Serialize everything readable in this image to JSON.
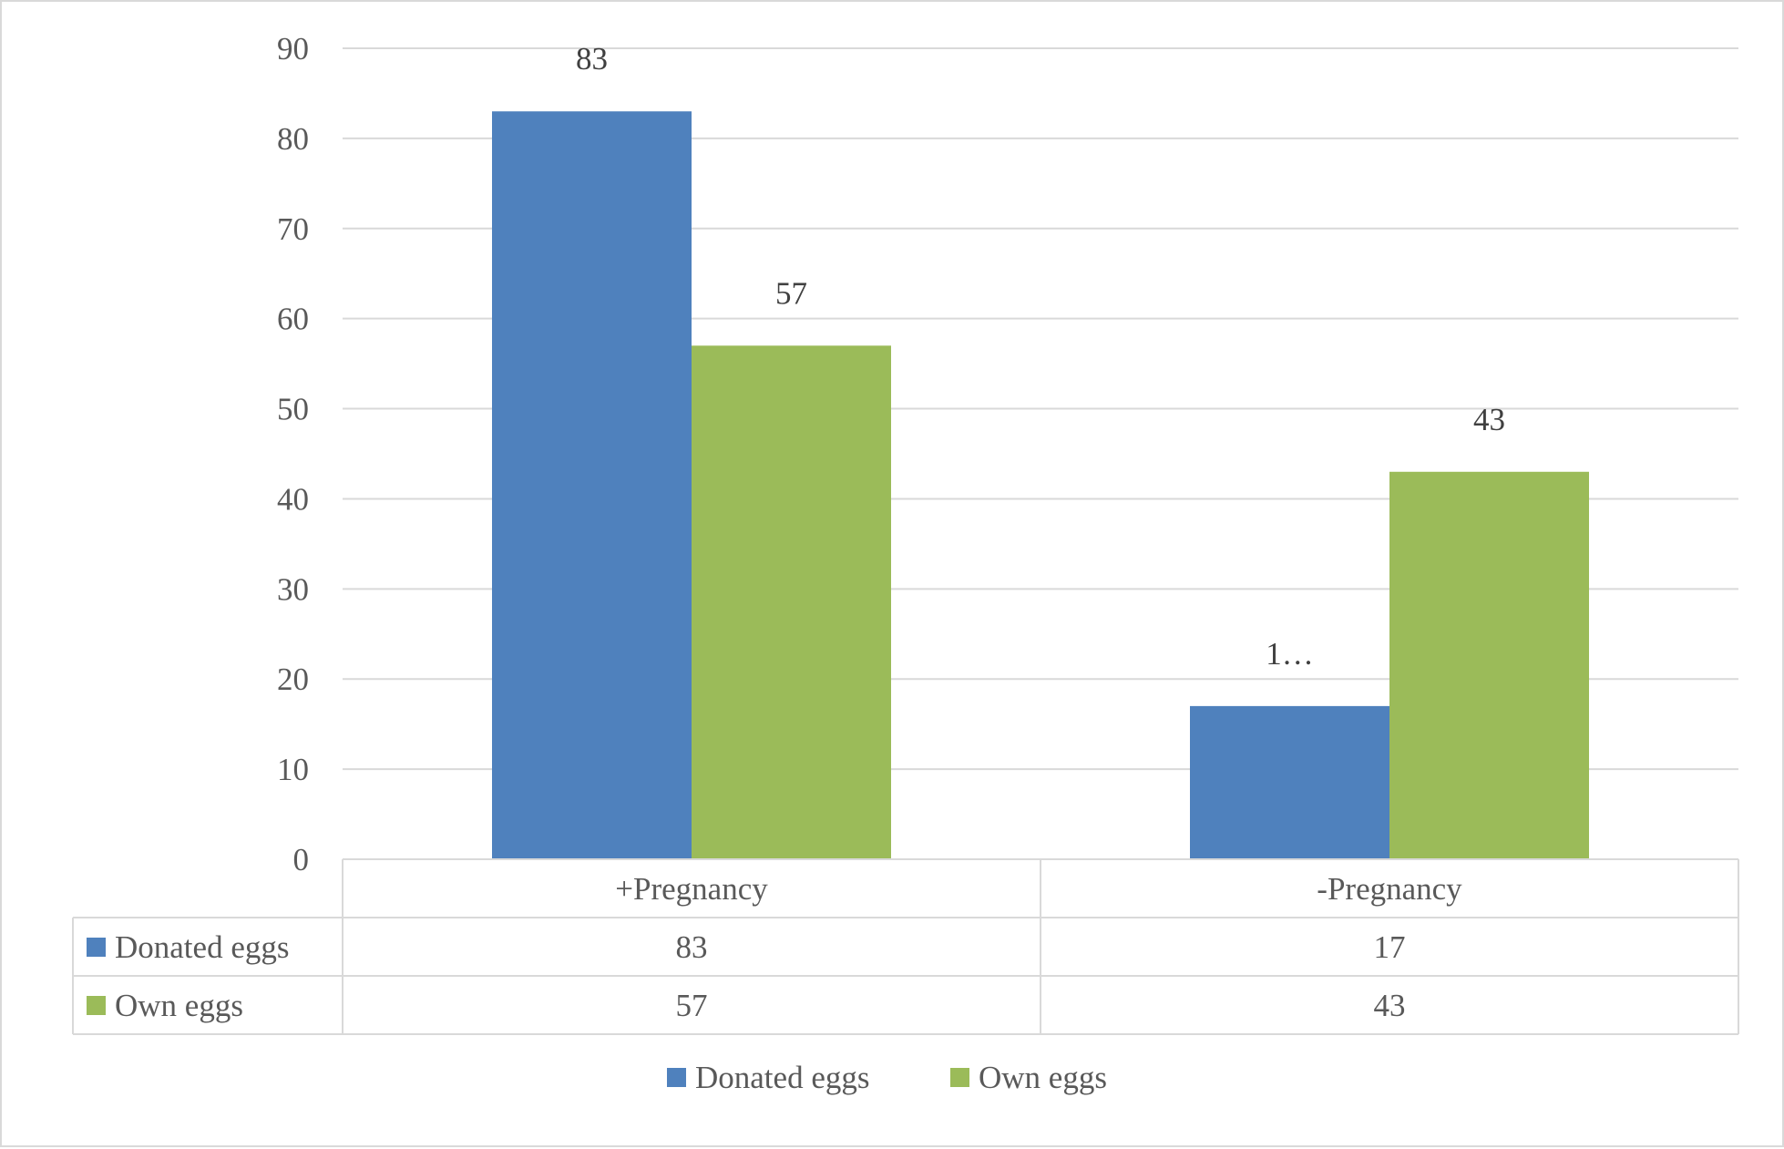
{
  "chart_data": {
    "type": "bar",
    "categories": [
      "+Pregnancy",
      "-Pregnancy"
    ],
    "series": [
      {
        "name": "Donated eggs",
        "values": [
          83,
          17
        ],
        "color": "#4f81bd",
        "labels": [
          "83",
          "1…"
        ]
      },
      {
        "name": "Own eggs",
        "values": [
          57,
          43
        ],
        "color": "#9bbb59",
        "labels": [
          "57",
          "43"
        ]
      }
    ],
    "ylim": [
      0,
      90
    ],
    "yticks": [
      0,
      10,
      20,
      30,
      40,
      50,
      60,
      70,
      80,
      90
    ],
    "grid": true,
    "data_table": true,
    "legend": "bottom",
    "title": "",
    "xlabel": "",
    "ylabel": "",
    "colors": {
      "grid": "#d9d9d9",
      "axis_text": "#595959",
      "label_text": "#404040"
    }
  }
}
